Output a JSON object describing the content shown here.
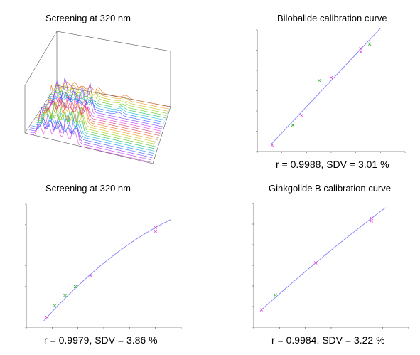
{
  "panels": {
    "tl": {
      "title": "Screening at 320 nm"
    },
    "tr": {
      "title": "Bilobalide calibration curve",
      "stat": "r = 0.9988, SDV = 3.01 %"
    },
    "bl": {
      "title": "Screening at 320 nm",
      "stat": "r = 0.9979, SDV = 3.86 %"
    },
    "br": {
      "title": "Ginkgolide B calibration curve",
      "stat": "r = 0.9984, SDV = 3.22 %"
    }
  },
  "colors": {
    "axis": "#333333",
    "fit_line": "#8080ff",
    "calibration_point": "#e040e0",
    "control_point": "#30b030",
    "baseline": "#a0c0e0"
  },
  "chart_data": [
    {
      "id": "tl",
      "type": "line",
      "title": "Screening at 320 nm",
      "description_3d": "waterfall of stacked chromatogram traces"
    },
    {
      "id": "tr",
      "type": "scatter",
      "title": "Bilobalide calibration curve",
      "fit": "linear",
      "xlim": [
        0,
        5000
      ],
      "ylim": [
        0,
        2500
      ],
      "series": [
        {
          "role": "calibration",
          "x": [
            500,
            1500,
            2500
          ],
          "y": [
            130,
            740,
            1520
          ]
        },
        {
          "role": "calibration",
          "x": [
            3500,
            3500
          ],
          "y": [
            2120,
            2050
          ]
        },
        {
          "role": "control",
          "x": [
            1200,
            2100,
            3800
          ],
          "y": [
            540,
            1460,
            2210
          ]
        }
      ]
    },
    {
      "id": "bl",
      "type": "scatter",
      "title": "Screening at 320 nm",
      "fit": "quadratic",
      "xlim": [
        0,
        6000
      ],
      "ylim": [
        0,
        1000
      ],
      "series": [
        {
          "role": "calibration",
          "x": [
            800,
            2500,
            5000,
            5000
          ],
          "y": [
            80,
            420,
            780,
            810
          ]
        },
        {
          "role": "control",
          "x": [
            1100,
            1500,
            1900
          ],
          "y": [
            175,
            260,
            330
          ]
        }
      ]
    },
    {
      "id": "br",
      "type": "scatter",
      "title": "Ginkgolide B calibration curve",
      "fit": "quadratic",
      "xlim": [
        0,
        5000
      ],
      "ylim": [
        0,
        1000
      ],
      "series": [
        {
          "role": "calibration",
          "x": [
            250,
            2000,
            3800,
            3800
          ],
          "y": [
            140,
            520,
            860,
            880
          ]
        },
        {
          "role": "control",
          "x": [
            700
          ],
          "y": [
            260
          ]
        }
      ]
    }
  ]
}
